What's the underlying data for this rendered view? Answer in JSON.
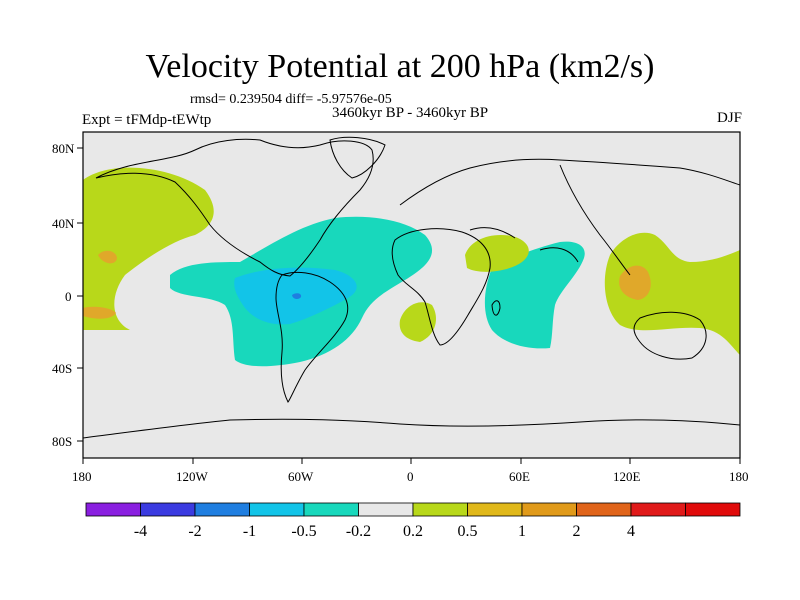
{
  "title": "Velocity Potential at 200 hPa (km2/s)",
  "stats": "rmsd= 0.239504 diff= -5.97576e-05",
  "subtitle": "3460kyr BP - 3460kyr BP",
  "experiment": "Expt = tFMdp-tEWtp",
  "season": "DJF",
  "lat_labels": [
    "80N",
    "40N",
    "0",
    "40S",
    "80S"
  ],
  "lon_labels": [
    "180",
    "120W",
    "60W",
    "0",
    "60E",
    "120E",
    "180"
  ],
  "colorbar": {
    "labels": [
      "-4",
      "-2",
      "-1",
      "-0.5",
      "-0.2",
      "0.2",
      "0.5",
      "1",
      "2",
      "4"
    ],
    "colors": [
      "#8a1fe0",
      "#3b3be0",
      "#1f7ee0",
      "#12c4e8",
      "#18d8bc",
      "#e8e8e8",
      "#b8d81a",
      "#e0b81a",
      "#e09a1a",
      "#e0641a",
      "#e01a1a",
      "#e00a0a"
    ]
  },
  "field_colors": {
    "background": "#e8e8e8",
    "pos_weak": "#b8d81a",
    "pos_mid": "#e0a82a",
    "neg_weak": "#18d8bc",
    "neg_mid": "#12c4e8",
    "neg_strong": "#1f7ee0"
  }
}
